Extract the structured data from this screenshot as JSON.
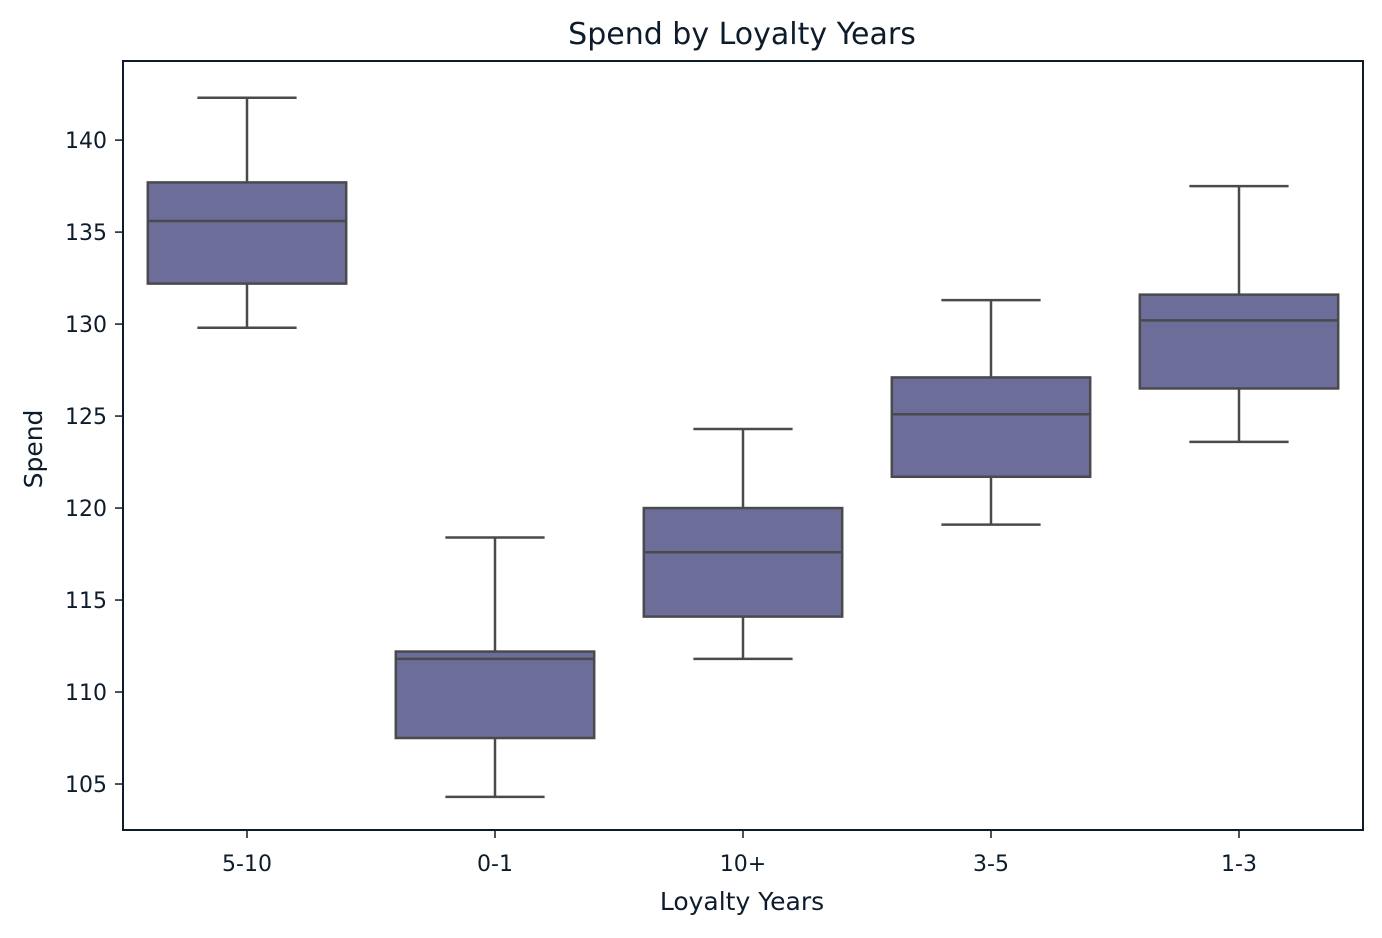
{
  "chart_data": {
    "type": "box",
    "title": "Spend by Loyalty Years",
    "xlabel": "Loyalty Years",
    "ylabel": "Spend",
    "ylim": [
      102.5,
      144.3
    ],
    "yticks": [
      105,
      110,
      115,
      120,
      125,
      130,
      135,
      140
    ],
    "grid": false,
    "categories": [
      "5-10",
      "0-1",
      "10+",
      "3-5",
      "1-3"
    ],
    "boxes": [
      {
        "category": "5-10",
        "whisker_low": 129.8,
        "q1": 132.2,
        "median": 135.6,
        "q3": 137.7,
        "whisker_high": 142.3
      },
      {
        "category": "0-1",
        "whisker_low": 104.3,
        "q1": 107.5,
        "median": 111.8,
        "q3": 112.2,
        "whisker_high": 118.4
      },
      {
        "category": "10+",
        "whisker_low": 111.8,
        "q1": 114.1,
        "median": 117.6,
        "q3": 120.0,
        "whisker_high": 124.3
      },
      {
        "category": "3-5",
        "whisker_low": 119.1,
        "q1": 121.7,
        "median": 125.1,
        "q3": 127.1,
        "whisker_high": 131.3
      },
      {
        "category": "1-3",
        "whisker_low": 123.6,
        "q1": 126.5,
        "median": 130.2,
        "q3": 131.6,
        "whisker_high": 137.5
      }
    ],
    "colors": {
      "box_fill": "#6c6d99",
      "box_edge": "#4a4a4e",
      "axis": "#0d1b2a"
    }
  }
}
